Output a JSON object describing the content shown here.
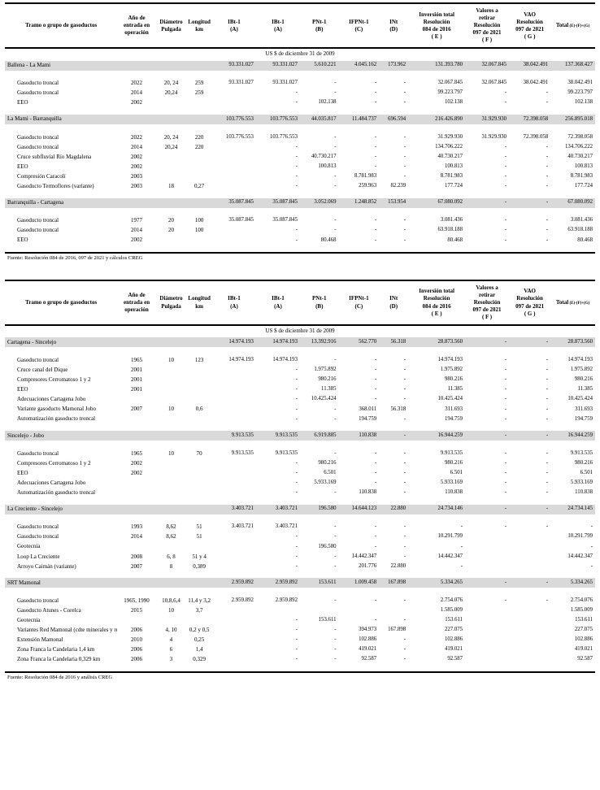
{
  "columns": [
    {
      "label": "Tramo o grupo de gasoductos"
    },
    {
      "label": "Año de\nentrada en\noperación"
    },
    {
      "label": "Diámetro\nPulgada"
    },
    {
      "label": "Longitud\nkm"
    },
    {
      "label": "IBt-1\n(A)"
    },
    {
      "label": "IBt-1\n(A)"
    },
    {
      "label": "PNt-1\n(B)"
    },
    {
      "label": "IFPNt-1\n(C)"
    },
    {
      "label": "INt\n(D)"
    },
    {
      "label": "Inversión total\nResolución\n084 de 2016\n( E )"
    },
    {
      "label": "Valores a\nretirar\nResolución\n097 de 2021\n( F )"
    },
    {
      "label": "VAO\nResolución\n097 de 2021\n( G )"
    },
    {
      "label": "Total",
      "sub": "(E)-(F)+(G)"
    }
  ],
  "tables": [
    {
      "currency_note": "US $ de diciembre 31 de 2009",
      "source": "Fuente: Resolución 084 de 2016, 097 de 2021 y cálculos CREG",
      "sections": [
        {
          "name": "Ballena - La Mami",
          "totals": [
            "",
            "",
            "",
            "93.331.027",
            "93.331.027",
            "5.610.221",
            "4.045.162",
            "173.962",
            "131.393.780",
            "32.067.845",
            "38.042.491",
            "137.368.427"
          ],
          "rows": [
            {
              "label": "Gasoducto troncal",
              "cells": [
                "2022",
                "20, 24",
                "259",
                "93.331.027",
                "93.331.027",
                "-",
                "-",
                "-",
                "32.067.845",
                "32.067.845",
                "38.042.491",
                "38.042.491"
              ]
            },
            {
              "label": "Gasoducto troncal",
              "cells": [
                "2014",
                "20,24",
                "259",
                "",
                "-",
                "-",
                "-",
                "-",
                "99.223.797",
                "-",
                "-",
                "99.223.797"
              ]
            },
            {
              "label": "EEO",
              "cells": [
                "2002",
                "",
                "",
                "",
                "-",
                "102.138",
                "-",
                "-",
                "102.138",
                "-",
                "-",
                "102.138"
              ]
            }
          ]
        },
        {
          "name": "La Mami - Barranquilla",
          "totals": [
            "",
            "",
            "",
            "103.776.553",
            "103.776.553",
            "44.035.817",
            "11.484.737",
            "696.594",
            "216.426.890",
            "31.929.930",
            "72.398.058",
            "256.895.018"
          ],
          "rows": [
            {
              "label": "Gasoducto troncal",
              "cells": [
                "2022",
                "20, 24",
                "220",
                "103.776.553",
                "103.776.553",
                "-",
                "-",
                "-",
                "31.929.930",
                "31.929.930",
                "72.398.058",
                "72.398.058"
              ]
            },
            {
              "label": "Gasoducto troncal",
              "cells": [
                "2014",
                "20,24",
                "220",
                "",
                "-",
                "-",
                "-",
                "-",
                "134.706.222",
                "-",
                "-",
                "134.706.222"
              ]
            },
            {
              "label": "Cruce subfluvial Río Magdalena",
              "cells": [
                "2002",
                "",
                "",
                "",
                "-",
                "40.730.217",
                "-",
                "-",
                "40.730.217",
                "-",
                "-",
                "40.730.217"
              ]
            },
            {
              "label": "EEO",
              "cells": [
                "2002",
                "",
                "",
                "",
                "-",
                "100.813",
                "-",
                "-",
                "100.813",
                "-",
                "-",
                "100.813"
              ]
            },
            {
              "label": "Compresión Caracolí",
              "cells": [
                "2003",
                "",
                "",
                "",
                "-",
                "-",
                "8.781.983",
                "-",
                "8.781.983",
                "-",
                "-",
                "8.781.983"
              ]
            },
            {
              "label": "Gasoducto Termoflores (variante)",
              "cells": [
                "2003",
                "18",
                "0,27",
                "",
                "-",
                "-",
                "259.963",
                "82.239",
                "177.724",
                "-",
                "-",
                "177.724"
              ]
            }
          ]
        },
        {
          "name": "Barranquilla - Cartagena",
          "totals": [
            "",
            "",
            "",
            "35.087.845",
            "35.087.845",
            "3.052.069",
            "1.248.852",
            "153.954",
            "67.080.092",
            "-",
            "-",
            "67.080.092"
          ],
          "rows": [
            {
              "label": "Gasoducto troncal",
              "cells": [
                "1977",
                "20",
                "100",
                "35.087.845",
                "35.087.845",
                "-",
                "-",
                "-",
                "3.081.436",
                "-",
                "-",
                "3.081.436"
              ]
            },
            {
              "label": "Gasoducto troncal",
              "cells": [
                "2014",
                "20",
                "100",
                "",
                "-",
                "-",
                "-",
                "-",
                "63.918.188",
                "-",
                "-",
                "63.918.188"
              ]
            },
            {
              "label": "EEO",
              "cells": [
                "2002",
                "",
                "",
                "",
                "-",
                "80.468",
                "-",
                "-",
                "80.468",
                "-",
                "-",
                "80.468"
              ]
            }
          ]
        }
      ]
    },
    {
      "currency_note": "US $ de diciembre 31 de 2009",
      "source": "Fuente: Resolución 084 de 2016 y análisis CREG",
      "sections": [
        {
          "name": "Cartagena - Sincelejo",
          "totals": [
            "",
            "",
            "",
            "14.974.193",
            "14.974.193",
            "13.392.916",
            "562.770",
            "56.318",
            "28.873.560",
            "-",
            "-",
            "28.873.560"
          ],
          "rows": [
            {
              "label": "Gasoducto troncal",
              "cells": [
                "1965",
                "10",
                "123",
                "14.974.193",
                "14.974.193",
                "-",
                "-",
                "-",
                "14.974.193",
                "-",
                "-",
                "14.974.193"
              ]
            },
            {
              "label": "Cruce canal del Dique",
              "cells": [
                "2001",
                "",
                "",
                "",
                "-",
                "1.975.892",
                "-",
                "-",
                "1.975.892",
                "-",
                "-",
                "1.975.892"
              ]
            },
            {
              "label": "Compresores Cerromatoso 1 y 2",
              "cells": [
                "2001",
                "",
                "",
                "",
                "-",
                "980.216",
                "-",
                "-",
                "980.216",
                "-",
                "-",
                "980.216"
              ]
            },
            {
              "label": "EEO",
              "cells": [
                "2001",
                "",
                "",
                "",
                "-",
                "11.385",
                "-",
                "-",
                "11.385",
                "-",
                "-",
                "11.385"
              ]
            },
            {
              "label": "Adecuaciones Cartagena Jobo",
              "cells": [
                "",
                "",
                "",
                "",
                "-",
                "10.425.424",
                "-",
                "-",
                "10.425.424",
                "-",
                "-",
                "10.425.424"
              ]
            },
            {
              "label": "Variante gasoducto Mamonal Jobo",
              "cells": [
                "2007",
                "10",
                "0,6",
                "",
                "-",
                "-",
                "368.011",
                "56.318",
                "311.693",
                "-",
                "-",
                "311.693"
              ]
            },
            {
              "label": "Automatización gasoducto troncal",
              "cells": [
                "",
                "",
                "",
                "",
                "-",
                "-",
                "194.759",
                "-",
                "194.759",
                "-",
                "-",
                "194.759"
              ]
            }
          ]
        },
        {
          "name": "Sincelejo - Jobo",
          "totals": [
            "",
            "",
            "",
            "9.913.535",
            "9.913.535",
            "6.919.885",
            "110.838",
            "-",
            "16.944.259",
            "-",
            "-",
            "16.944.259"
          ],
          "rows": [
            {
              "label": "Gasoducto troncal",
              "cells": [
                "1965",
                "10",
                "70",
                "9.913.535",
                "9.913.535",
                "-",
                "-",
                "-",
                "9.913.535",
                "-",
                "-",
                "9.913.535"
              ]
            },
            {
              "label": "Compresores Cerromatoso 1 y 2",
              "cells": [
                "2002",
                "",
                "",
                "",
                "-",
                "980.216",
                "-",
                "-",
                "980.216",
                "-",
                "-",
                "980.216"
              ]
            },
            {
              "label": "EEO",
              "cells": [
                "2002",
                "",
                "",
                "",
                "-",
                "6.501",
                "-",
                "-",
                "6.501",
                "-",
                "-",
                "6.501"
              ]
            },
            {
              "label": "Adecuaciones Cartagena Jobo",
              "cells": [
                "",
                "",
                "",
                "",
                "-",
                "5.933.169",
                "-",
                "-",
                "5.933.169",
                "-",
                "-",
                "5.933.169"
              ]
            },
            {
              "label": "Automatización gasoducto troncal",
              "cells": [
                "",
                "",
                "",
                "",
                "-",
                "-",
                "110.838",
                "-",
                "110.838",
                "-",
                "-",
                "110.838"
              ]
            }
          ]
        },
        {
          "name": "La Creciente - Sincelejo",
          "totals": [
            "",
            "",
            "",
            "3.403.721",
            "3.403.721",
            "196.580",
            "14.644.123",
            "22.880",
            "24.734.146",
            "-",
            "-",
            "24.734.145"
          ],
          "rows": [
            {
              "label": "Gasoducto troncal",
              "cells": [
                "1993",
                "8,62",
                "51",
                "3.403.721",
                "3.403.721",
                "-",
                "-",
                "-",
                "-",
                "-",
                "-",
                "-"
              ]
            },
            {
              "label": "Gasoducto troncal",
              "cells": [
                "2014",
                "8,62",
                "51",
                "",
                "-",
                "-",
                "-",
                "-",
                "10.291.799",
                "",
                "",
                "10.291.799"
              ]
            },
            {
              "label": "Geotecnia",
              "cells": [
                "",
                "",
                "",
                "",
                "-",
                "196.580",
                "-",
                "-",
                "-",
                "",
                "",
                "-"
              ]
            },
            {
              "label": "Loop La Creciente",
              "cells": [
                "2008",
                "6, 8",
                "51 y 4",
                "",
                "-",
                "-",
                "14.442.347",
                "-",
                "14.442.347",
                "",
                "",
                "14.442.347"
              ]
            },
            {
              "label": "Arroyo Caimán (variante)",
              "cells": [
                "2007",
                "8",
                "0,389",
                "",
                "-",
                "-",
                "201.776",
                "22.880",
                "-",
                "",
                "",
                "-"
              ]
            }
          ]
        },
        {
          "name": "SRT Mamonal",
          "totals": [
            "",
            "",
            "",
            "2.959.892",
            "2.959.892",
            "153.611",
            "1.009.458",
            "167.898",
            "5.334.265",
            "-",
            "-",
            "5.334.265"
          ],
          "rows": [
            {
              "label": "Gasoducto troncal",
              "cells": [
                "1965, 1990",
                "10,8,6,4",
                "11,4 y 3,2",
                "2.959.892",
                "2.959.892",
                "-",
                "-",
                "-",
                "2.754.076",
                "-",
                "-",
                "2.754.076"
              ]
            },
            {
              "label": "Gasoducto Atunes - Corelca",
              "cells": [
                "2015",
                "10",
                "3,7",
                "",
                "",
                "",
                "",
                "",
                "1.585.009",
                "",
                "",
                "1.585.009"
              ]
            },
            {
              "label": "Geotecnia",
              "cells": [
                "",
                "",
                "",
                "",
                "-",
                "153.611",
                "-",
                "-",
                "153.611",
                "",
                "",
                "153.611"
              ]
            },
            {
              "label": "Variantes Red Mamonal (cdte minerales y refinería)",
              "cells": [
                "2006",
                "4, 10",
                "0,2 y 0,5",
                "",
                "-",
                "-",
                "394.973",
                "167.898",
                "227.075",
                "",
                "",
                "227.075"
              ]
            },
            {
              "label": "Extensión Mamonal",
              "cells": [
                "2010",
                "4",
                "0,25",
                "",
                "-",
                "-",
                "102.886",
                "-",
                "102.886",
                "",
                "",
                "102.886"
              ]
            },
            {
              "label": "Zona Franca la Candelaria 1,4 km",
              "cells": [
                "2006",
                "6",
                "1,4",
                "",
                "-",
                "-",
                "419.021",
                "-",
                "419.021",
                "",
                "",
                "419.021"
              ]
            },
            {
              "label": "Zona Franca la Candelaria 0,329 km",
              "cells": [
                "2006",
                "3",
                "0,329",
                "",
                "-",
                "-",
                "92.587",
                "-",
                "92.587",
                "",
                "",
                "92.587"
              ]
            }
          ]
        }
      ]
    }
  ]
}
